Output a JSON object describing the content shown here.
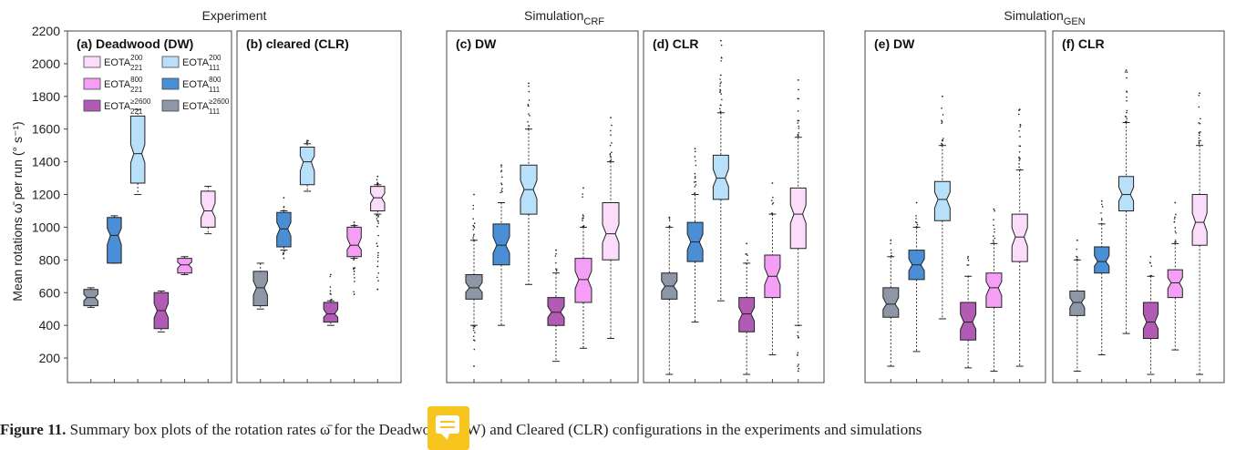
{
  "chart_data": {
    "type": "boxplot",
    "ylabel": "Mean rotations ω̄ per run (° s⁻¹)",
    "ylim": [
      50,
      2200
    ],
    "yticks": [
      200,
      400,
      600,
      800,
      1000,
      1200,
      1400,
      1600,
      1800,
      2000,
      2200
    ],
    "group_titles": [
      {
        "main": "Experiment",
        "sub": ""
      },
      {
        "main": "Simulation",
        "sub": "CRF"
      },
      {
        "main": "Simulation",
        "sub": "GEN"
      }
    ],
    "series_colors": [
      "#8e97a6",
      "#4a8fd6",
      "#b8e0fb",
      "#b15bb4",
      "#f49ff5",
      "#fbdcfb"
    ],
    "legend": [
      {
        "name": "EOTA",
        "sub": "221",
        "sup": "200",
        "color": "#fbdcfb"
      },
      {
        "name": "EOTA",
        "sub": "111",
        "sup": "200",
        "color": "#b8e0fb"
      },
      {
        "name": "EOTA",
        "sub": "221",
        "sup": "800",
        "color": "#f49ff5"
      },
      {
        "name": "EOTA",
        "sub": "111",
        "sup": "800",
        "color": "#4a8fd6"
      },
      {
        "name": "EOTA",
        "sub": "221",
        "sup": "≥2600",
        "color": "#b15bb4"
      },
      {
        "name": "EOTA",
        "sub": "111",
        "sup": "≥2600",
        "color": "#8e97a6"
      }
    ],
    "panels": [
      {
        "label": "(a) Deadwood (DW)",
        "boxes": [
          {
            "q1": 520,
            "median": 570,
            "q3": 620,
            "whisker_low": 510,
            "whisker_high": 630,
            "outliers": []
          },
          {
            "q1": 780,
            "median": 950,
            "q3": 1060,
            "whisker_low": 780,
            "whisker_high": 1070,
            "outliers": []
          },
          {
            "q1": 1270,
            "median": 1450,
            "q3": 1680,
            "whisker_low": 1200,
            "whisker_high": 1720,
            "outliers": []
          },
          {
            "q1": 380,
            "median": 490,
            "q3": 600,
            "whisker_low": 360,
            "whisker_high": 610,
            "outliers": []
          },
          {
            "q1": 720,
            "median": 770,
            "q3": 810,
            "whisker_low": 710,
            "whisker_high": 820,
            "outliers": []
          },
          {
            "q1": 1000,
            "median": 1100,
            "q3": 1220,
            "whisker_low": 960,
            "whisker_high": 1250,
            "outliers": []
          }
        ]
      },
      {
        "label": "(b) cleared (CLR)",
        "boxes": [
          {
            "q1": 520,
            "median": 630,
            "q3": 730,
            "whisker_low": 500,
            "whisker_high": 780,
            "outliers": []
          },
          {
            "q1": 880,
            "median": 990,
            "q3": 1090,
            "whisker_low": 860,
            "whisker_high": 1100,
            "outliers": [
              810,
              1180
            ]
          },
          {
            "q1": 1260,
            "median": 1400,
            "q3": 1490,
            "whisker_low": 1220,
            "whisker_high": 1510,
            "outliers": [
              1530
            ]
          },
          {
            "q1": 420,
            "median": 470,
            "q3": 540,
            "whisker_low": 400,
            "whisker_high": 550,
            "outliers": [
              710
            ]
          },
          {
            "q1": 820,
            "median": 890,
            "q3": 1000,
            "whisker_low": 810,
            "whisker_high": 1010,
            "outliers": [
              590,
              730,
              1030
            ]
          },
          {
            "q1": 1100,
            "median": 1180,
            "q3": 1250,
            "whisker_low": 1080,
            "whisker_high": 1260,
            "outliers": [
              620,
              760,
              1310
            ]
          }
        ]
      },
      {
        "label": "(c) DW",
        "boxes": [
          {
            "q1": 560,
            "median": 630,
            "q3": 710,
            "whisker_low": 400,
            "whisker_high": 920,
            "outliers": [
              150,
              1200
            ]
          },
          {
            "q1": 770,
            "median": 890,
            "q3": 1020,
            "whisker_low": 400,
            "whisker_high": 1150,
            "outliers": [
              1380
            ]
          },
          {
            "q1": 1080,
            "median": 1230,
            "q3": 1380,
            "whisker_low": 650,
            "whisker_high": 1600,
            "outliers": [
              1880
            ]
          },
          {
            "q1": 400,
            "median": 480,
            "q3": 570,
            "whisker_low": 180,
            "whisker_high": 720,
            "outliers": [
              860
            ]
          },
          {
            "q1": 540,
            "median": 680,
            "q3": 810,
            "whisker_low": 260,
            "whisker_high": 1000,
            "outliers": [
              1240
            ]
          },
          {
            "q1": 800,
            "median": 960,
            "q3": 1150,
            "whisker_low": 320,
            "whisker_high": 1400,
            "outliers": [
              1670
            ]
          }
        ]
      },
      {
        "label": "(d) CLR",
        "boxes": [
          {
            "q1": 560,
            "median": 640,
            "q3": 720,
            "whisker_low": 100,
            "whisker_high": 1000,
            "outliers": [
              1060
            ]
          },
          {
            "q1": 790,
            "median": 910,
            "q3": 1030,
            "whisker_low": 420,
            "whisker_high": 1200,
            "outliers": [
              1480
            ]
          },
          {
            "q1": 1170,
            "median": 1300,
            "q3": 1440,
            "whisker_low": 550,
            "whisker_high": 1700,
            "outliers": [
              1930,
              2140
            ]
          },
          {
            "q1": 360,
            "median": 470,
            "q3": 570,
            "whisker_low": 100,
            "whisker_high": 780,
            "outliers": [
              900
            ]
          },
          {
            "q1": 570,
            "median": 700,
            "q3": 830,
            "whisker_low": 220,
            "whisker_high": 1080,
            "outliers": [
              1270
            ]
          },
          {
            "q1": 870,
            "median": 1080,
            "q3": 1240,
            "whisker_low": 400,
            "whisker_high": 1550,
            "outliers": [
              120,
              1900
            ]
          }
        ]
      },
      {
        "label": "(e) DW",
        "boxes": [
          {
            "q1": 450,
            "median": 530,
            "q3": 630,
            "whisker_low": 150,
            "whisker_high": 820,
            "outliers": [
              920
            ]
          },
          {
            "q1": 680,
            "median": 770,
            "q3": 860,
            "whisker_low": 240,
            "whisker_high": 1000,
            "outliers": [
              1150
            ]
          },
          {
            "q1": 1040,
            "median": 1170,
            "q3": 1280,
            "whisker_low": 440,
            "whisker_high": 1500,
            "outliers": [
              1800
            ]
          },
          {
            "q1": 310,
            "median": 420,
            "q3": 540,
            "whisker_low": 140,
            "whisker_high": 700,
            "outliers": [
              820
            ]
          },
          {
            "q1": 510,
            "median": 630,
            "q3": 720,
            "whisker_low": 120,
            "whisker_high": 900,
            "outliers": [
              1110
            ]
          },
          {
            "q1": 790,
            "median": 940,
            "q3": 1080,
            "whisker_low": 150,
            "whisker_high": 1350,
            "outliers": [
              1720
            ]
          }
        ]
      },
      {
        "label": "(f) CLR",
        "boxes": [
          {
            "q1": 460,
            "median": 540,
            "q3": 610,
            "whisker_low": 120,
            "whisker_high": 800,
            "outliers": [
              920
            ]
          },
          {
            "q1": 720,
            "median": 790,
            "q3": 880,
            "whisker_low": 220,
            "whisker_high": 1020,
            "outliers": [
              1160
            ]
          },
          {
            "q1": 1100,
            "median": 1200,
            "q3": 1310,
            "whisker_low": 350,
            "whisker_high": 1640,
            "outliers": [
              1960
            ]
          },
          {
            "q1": 320,
            "median": 420,
            "q3": 540,
            "whisker_low": 100,
            "whisker_high": 700,
            "outliers": [
              820
            ]
          },
          {
            "q1": 570,
            "median": 660,
            "q3": 740,
            "whisker_low": 250,
            "whisker_high": 900,
            "outliers": [
              1150
            ]
          },
          {
            "q1": 890,
            "median": 1030,
            "q3": 1200,
            "whisker_low": 100,
            "whisker_high": 1500,
            "outliers": [
              1820
            ]
          }
        ]
      }
    ]
  },
  "caption": {
    "lead": "Figure 11.",
    "text": "Summary box plots of the rotation rates ω̄ for the Deadwood (DW) and Cleared (CLR) configurations in the experiments and simulations"
  },
  "note_icon": "comment-icon"
}
